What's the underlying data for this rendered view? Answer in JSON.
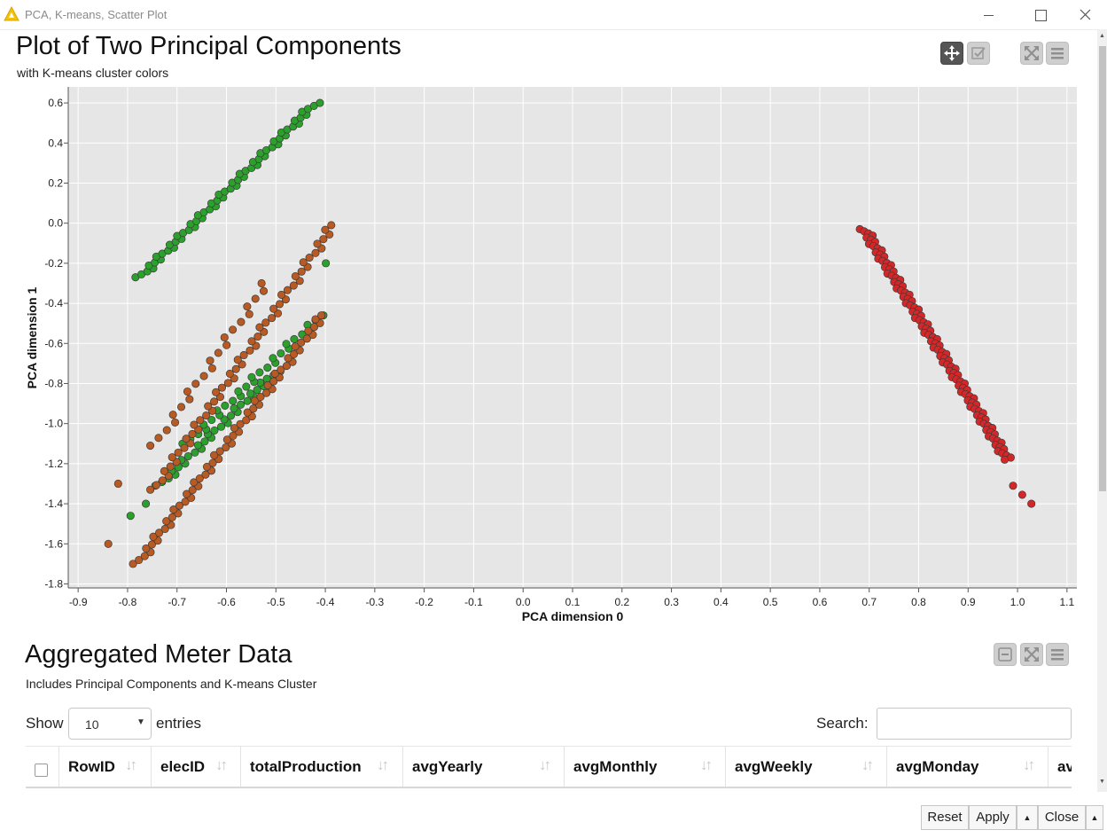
{
  "window": {
    "title": "PCA, K-means, Scatter Plot",
    "app_icon": "knime-warning-triangle-icon",
    "controls": [
      "minimize-icon",
      "maximize-icon",
      "close-icon"
    ]
  },
  "plot": {
    "title": "Plot of Two Principal Components",
    "subtitle": "with K-means cluster colors",
    "toolbar": [
      "pan-icon",
      "selection-icon",
      "fullscreen-icon",
      "menu-icon"
    ]
  },
  "chart_data": {
    "type": "scatter",
    "title": "Plot of Two Principal Components",
    "subtitle": "with K-means cluster colors",
    "xlabel": "PCA dimension 0",
    "ylabel": "PCA dimension 1",
    "xlim": [
      -0.92,
      1.12
    ],
    "ylim": [
      -1.82,
      0.68
    ],
    "xticks": [
      "-0.9",
      "-0.8",
      "-0.7",
      "-0.6",
      "-0.5",
      "-0.4",
      "-0.3",
      "-0.2",
      "-0.1",
      "0.0",
      "0.1",
      "0.2",
      "0.3",
      "0.4",
      "0.5",
      "0.6",
      "0.7",
      "0.8",
      "0.9",
      "1.0",
      "1.1"
    ],
    "yticks": [
      "0.6",
      "0.4",
      "0.2",
      "0.0",
      "-0.2",
      "-0.4",
      "-0.6",
      "-0.8",
      "-1.0",
      "-1.2",
      "-1.4",
      "-1.6",
      "-1.8"
    ],
    "grid": true,
    "background": "#e6e6e6",
    "series": [
      {
        "color": "#2ca02c",
        "segments": [
          {
            "x0": -0.775,
            "y0": -0.27,
            "x1": -0.42,
            "y1": 0.6,
            "n": 60
          },
          {
            "x0": -0.735,
            "y0": -1.31,
            "x1": -0.5,
            "y1": -0.74,
            "n": 32
          },
          {
            "x0": -0.68,
            "y0": -1.1,
            "x1": -0.41,
            "y1": -0.46,
            "n": 28
          },
          {
            "x0": -0.785,
            "y0": -1.46,
            "x1": -0.76,
            "y1": -1.4,
            "n": 2
          },
          {
            "x0": -0.39,
            "y0": -0.2,
            "x1": -0.38,
            "y1": -0.2,
            "n": 1
          }
        ]
      },
      {
        "color": "#b85a23",
        "segments": [
          {
            "x0": -0.745,
            "y0": -1.33,
            "x1": -0.385,
            "y1": -0.01,
            "n": 58
          },
          {
            "x0": -0.78,
            "y0": -1.7,
            "x1": -0.405,
            "y1": -0.46,
            "n": 65
          },
          {
            "x0": -0.745,
            "y0": -1.11,
            "x1": -0.52,
            "y1": -0.3,
            "n": 22
          },
          {
            "x0": -0.83,
            "y0": -1.6,
            "x1": -0.83,
            "y1": -1.6,
            "n": 1
          },
          {
            "x0": -0.81,
            "y0": -1.3,
            "x1": -0.81,
            "y1": -1.3,
            "n": 1
          }
        ]
      },
      {
        "color": "#d62728",
        "segments": [
          {
            "x0": 0.69,
            "y0": -0.03,
            "x1": 0.98,
            "y1": -1.18,
            "n": 110
          },
          {
            "x0": 1.0,
            "y0": -1.31,
            "x1": 1.025,
            "y1": -1.4,
            "n": 3
          }
        ]
      }
    ]
  },
  "table": {
    "title": "Aggregated Meter Data",
    "subtitle": "Includes Principal Components and K-means Cluster",
    "toolbar": [
      "collapse-icon",
      "fullscreen-icon",
      "menu-icon"
    ],
    "show_label": "Show",
    "entries_value": "10",
    "entries_label": "entries",
    "search_label": "Search:",
    "search_value": "",
    "columns": [
      "RowID",
      "elecID",
      "totalProduction",
      "avgYearly",
      "avgMonthly",
      "avgWeekly",
      "avgMonday",
      "av"
    ]
  },
  "footer": {
    "reset": "Reset",
    "apply": "Apply",
    "close": "Close"
  }
}
